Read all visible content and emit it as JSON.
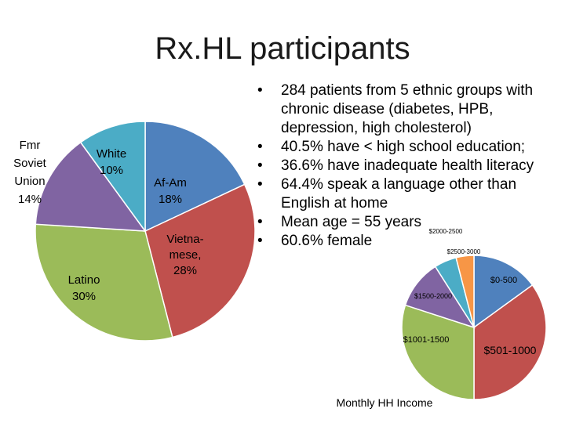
{
  "slide": {
    "title": "Rx.HL participants"
  },
  "bullets": [
    "284 patients from 5 ethnic groups with chronic disease (diabetes, HPB, depression, high cholesterol)",
    "40.5% have < high school education;",
    "36.6% have inadequate health literacy",
    "64.4% speak a language other than English at home",
    "Mean age = 55 years",
    "60.6% female"
  ],
  "chart_data": [
    {
      "type": "pie",
      "title": "",
      "slices": [
        {
          "label_lines": [
            "Af-Am",
            "18%"
          ],
          "value": 18,
          "color": "#4f81bd"
        },
        {
          "label_lines": [
            "Vietna-",
            "mese,",
            "28%"
          ],
          "value": 28,
          "color": "#c0504d"
        },
        {
          "label_lines": [
            "Latino",
            "30%"
          ],
          "value": 30,
          "color": "#9bbb59"
        },
        {
          "label_lines": [
            "Fmr",
            "Soviet",
            "Union",
            "14%"
          ],
          "value": 14,
          "color": "#8064a2"
        },
        {
          "label_lines": [
            "White",
            "10%"
          ],
          "value": 10,
          "color": "#4bacc6"
        }
      ]
    },
    {
      "type": "pie",
      "title": "Monthly HH Income",
      "slices": [
        {
          "label_lines": [
            "$0-500"
          ],
          "value": 15,
          "color": "#4f81bd"
        },
        {
          "label_lines": [
            "$501-1000"
          ],
          "value": 35,
          "color": "#c0504d"
        },
        {
          "label_lines": [
            "$1001-1500"
          ],
          "value": 30,
          "color": "#9bbb59"
        },
        {
          "label_lines": [
            "$1500-2000"
          ],
          "value": 11,
          "color": "#8064a2"
        },
        {
          "label_lines": [
            "$2000-2500"
          ],
          "value": 5,
          "color": "#4bacc6"
        },
        {
          "label_lines": [
            "$2500-3000"
          ],
          "value": 4,
          "color": "#f79646"
        }
      ]
    }
  ]
}
